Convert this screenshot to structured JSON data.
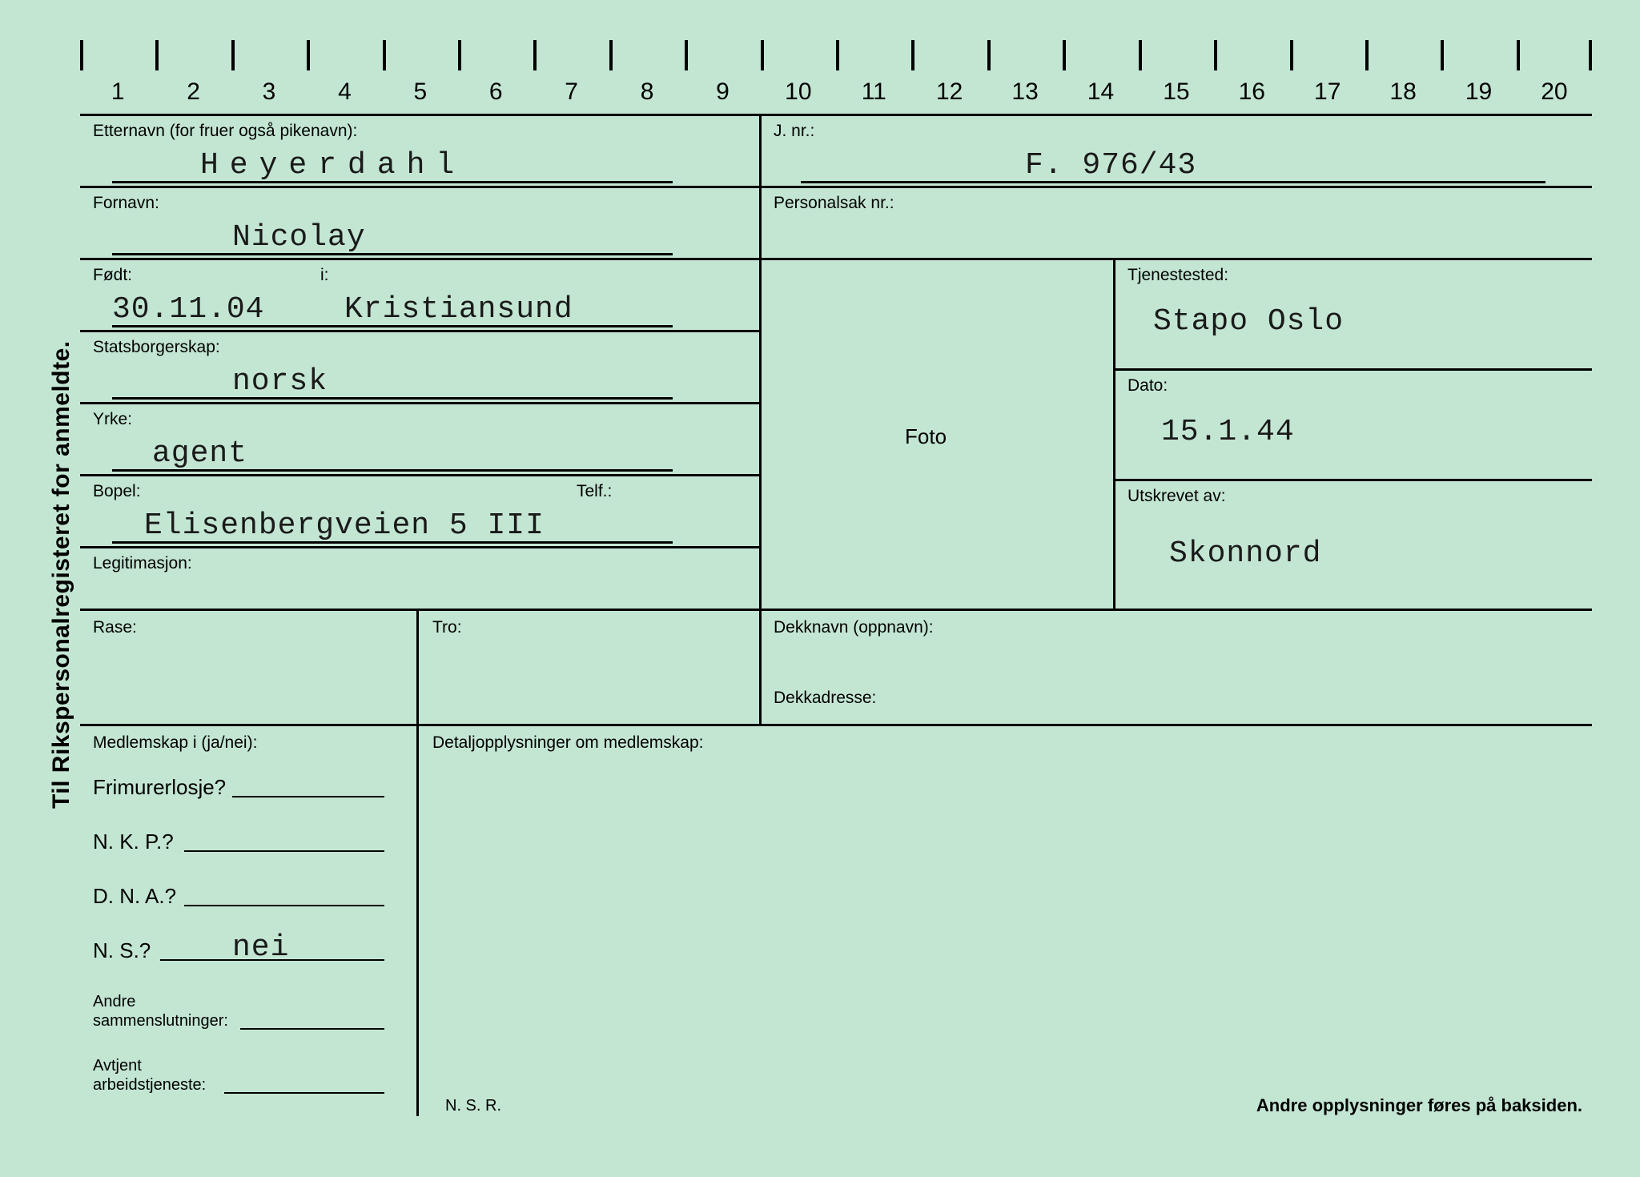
{
  "colors": {
    "card_background": "#c3e6d3",
    "line": "#000000",
    "label": "#000000",
    "value": "#1a1a1a"
  },
  "side_title": "Til Rikspersonalregisteret for anmeldte.",
  "ruler": {
    "start": 1,
    "end": 20
  },
  "labels": {
    "etternavn": "Etternavn (for fruer også pikenavn):",
    "jnr": "J. nr.:",
    "fornavn": "Fornavn:",
    "personalsak": "Personalsak nr.:",
    "fodt": "Født:",
    "fodt_i": "i:",
    "tjenestested": "Tjenestested:",
    "statsborgerskap": "Statsborgerskap:",
    "dato": "Dato:",
    "yrke": "Yrke:",
    "foto": "Foto",
    "bopel": "Bopel:",
    "telf": "Telf.:",
    "utskrevet": "Utskrevet av:",
    "legitimasjon": "Legitimasjon:",
    "rase": "Rase:",
    "tro": "Tro:",
    "dekknavn": "Dekknavn (oppnavn):",
    "dekkadresse": "Dekkadresse:",
    "medlemskap": "Medlemskap i (ja/nei):",
    "detalj": "Detaljopplysninger om medlemskap:",
    "frimurer": "Frimurerlosje?",
    "nkp": "N. K. P.?",
    "dna": "D. N. A.?",
    "ns": "N. S.?",
    "andre_samm": "Andre\nsammenslutninger:",
    "andre_samm_l1": "Andre",
    "andre_samm_l2": "sammenslutninger:",
    "avtjent_l1": "Avtjent",
    "avtjent_l2": "arbeidstjeneste:",
    "nsr": "N. S. R.",
    "back_note": "Andre opplysninger føres på baksiden."
  },
  "values": {
    "etternavn": "Heyerdahl",
    "jnr": "F. 976/43",
    "fornavn": "Nicolay",
    "personalsak": "",
    "fodt": "30.11.04",
    "fodt_i": "Kristiansund",
    "tjenestested": "Stapo Oslo",
    "statsborgerskap": "norsk",
    "dato": "15.1.44",
    "yrke": "agent",
    "bopel": "Elisenbergveien 5 III",
    "telf": "",
    "utskrevet": "Skonnord",
    "legitimasjon": "",
    "rase": "",
    "tro": "",
    "dekknavn": "",
    "dekkadresse": "",
    "frimurer": "",
    "nkp": "",
    "dna": "",
    "ns": "nei"
  }
}
